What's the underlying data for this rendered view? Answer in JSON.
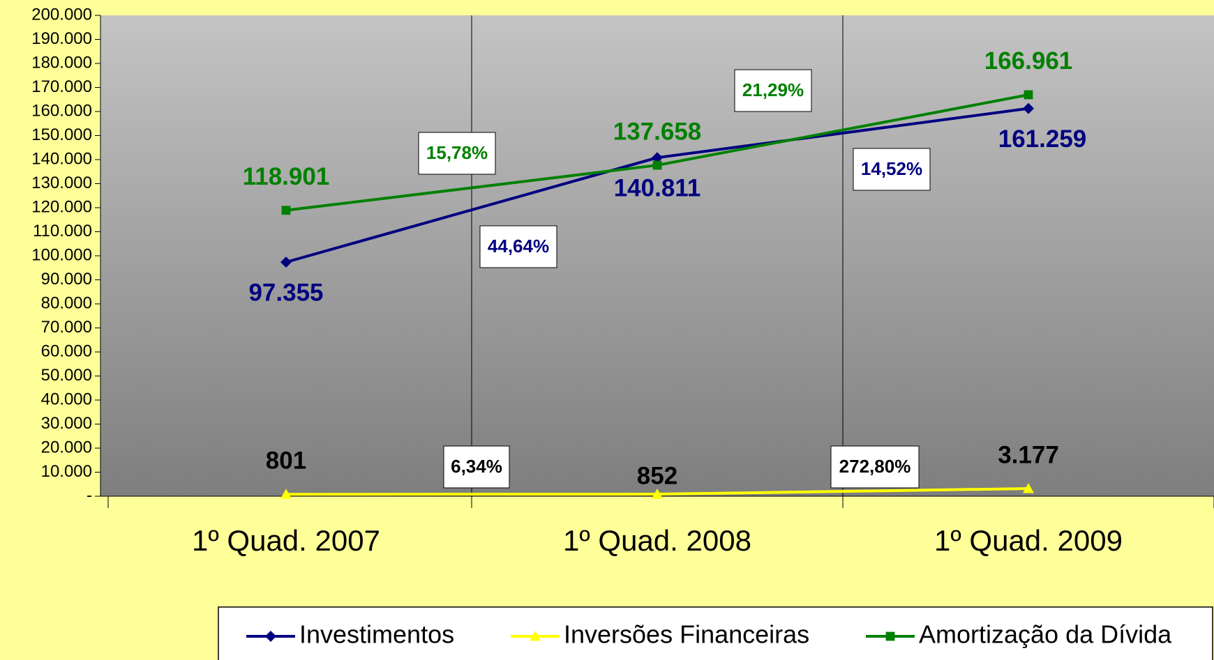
{
  "chart_data": {
    "type": "line",
    "categories": [
      "1º Quad. 2007",
      "1º Quad. 2008",
      "1º Quad. 2009"
    ],
    "series": [
      {
        "name": "Investimentos",
        "color": "#000080",
        "marker": "diamond",
        "label_side": "below",
        "values": [
          97355,
          140811,
          161259
        ],
        "value_labels": [
          "97.355",
          "140.811",
          "161.259"
        ]
      },
      {
        "name": "Inversões Financeiras",
        "color": "#ffff00",
        "marker": "triangle",
        "label_side": "above",
        "label_color": "#000000",
        "values": [
          801,
          852,
          3177
        ],
        "value_labels": [
          "801",
          "852",
          "3.177"
        ]
      },
      {
        "name": "Amortização da Dívida",
        "color": "#008000",
        "marker": "square",
        "label_side": "above",
        "values": [
          118901,
          137658,
          166961
        ],
        "value_labels": [
          "118.901",
          "137.658",
          "166.961"
        ]
      }
    ],
    "annotations": [
      {
        "text": "15,78%",
        "color": "#008000"
      },
      {
        "text": "21,29%",
        "color": "#008000"
      },
      {
        "text": "44,64%",
        "color": "#000080"
      },
      {
        "text": "14,52%",
        "color": "#000080"
      },
      {
        "text": "6,34%",
        "color": "#000000"
      },
      {
        "text": "272,80%",
        "color": "#000000"
      }
    ],
    "ylim": [
      0,
      200000
    ],
    "yticks": [
      {
        "value": 0,
        "label": "-"
      },
      {
        "value": 10000,
        "label": "10.000"
      },
      {
        "value": 20000,
        "label": "20.000"
      },
      {
        "value": 30000,
        "label": "30.000"
      },
      {
        "value": 40000,
        "label": "40.000"
      },
      {
        "value": 50000,
        "label": "50.000"
      },
      {
        "value": 60000,
        "label": "60.000"
      },
      {
        "value": 70000,
        "label": "70.000"
      },
      {
        "value": 80000,
        "label": "80.000"
      },
      {
        "value": 90000,
        "label": "90.000"
      },
      {
        "value": 100000,
        "label": "100.000"
      },
      {
        "value": 110000,
        "label": "110.000"
      },
      {
        "value": 120000,
        "label": "120.000"
      },
      {
        "value": 130000,
        "label": "130.000"
      },
      {
        "value": 140000,
        "label": "140.000"
      },
      {
        "value": 150000,
        "label": "150.000"
      },
      {
        "value": 160000,
        "label": "160.000"
      },
      {
        "value": 170000,
        "label": "170.000"
      },
      {
        "value": 180000,
        "label": "180.000"
      },
      {
        "value": 190000,
        "label": "190.000"
      },
      {
        "value": 200000,
        "label": "200.000"
      }
    ],
    "grid": false,
    "legend": "bottom"
  }
}
